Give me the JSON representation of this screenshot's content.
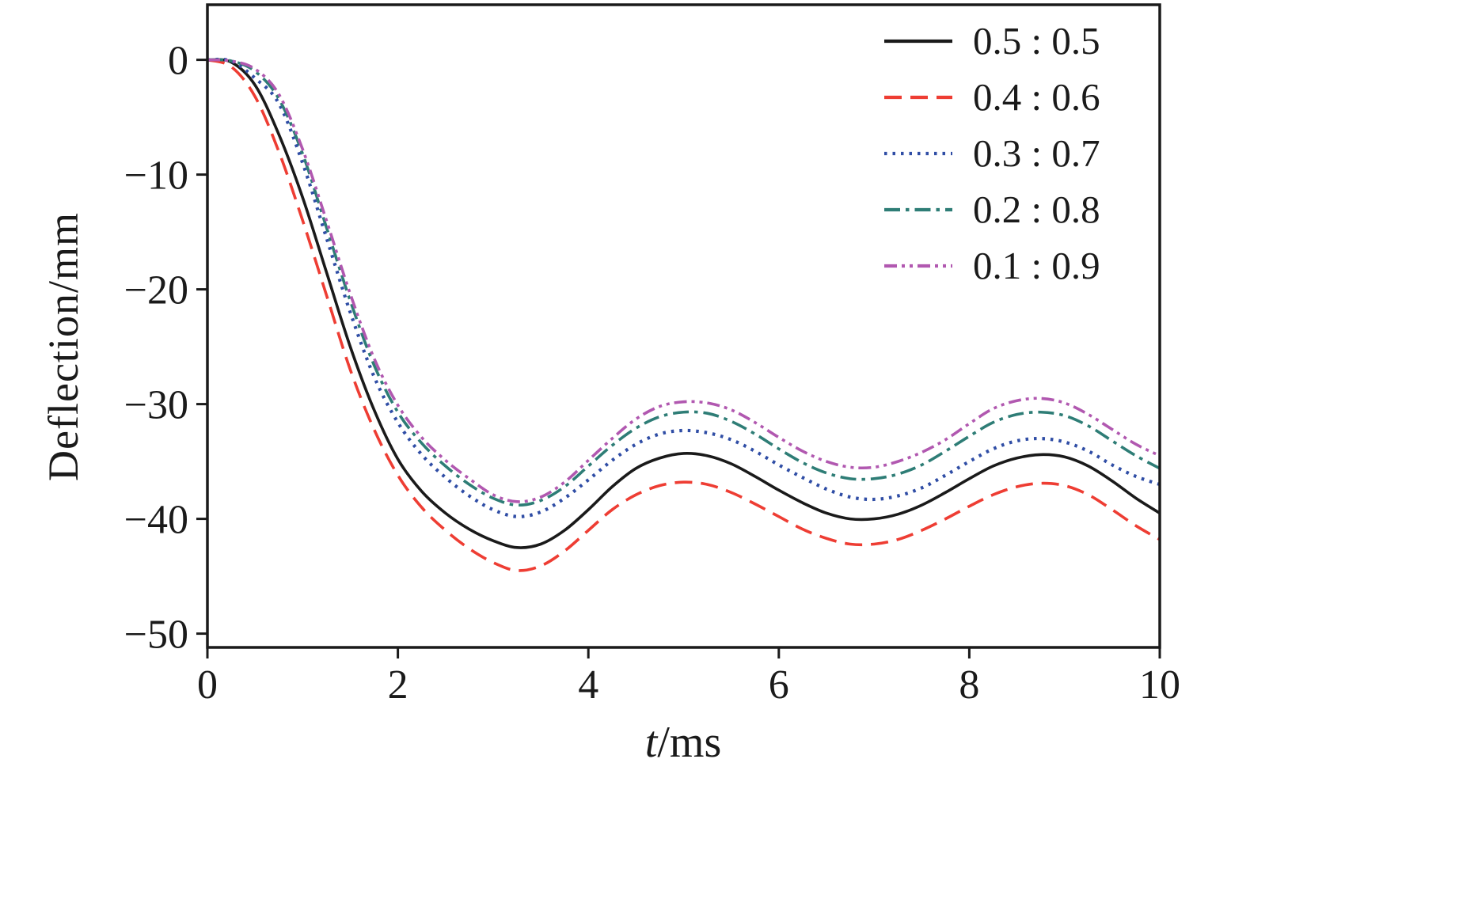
{
  "figure": {
    "background": "#ffffff",
    "ink_color": "#1a1a1a"
  },
  "chart_data": {
    "type": "line",
    "title": "",
    "xlabel": {
      "text": "t/ms",
      "variable": "t",
      "unit": "/ms"
    },
    "ylabel": "Deflection/mm",
    "xlim": [
      0,
      10
    ],
    "ylim": [
      -51.2,
      4.8
    ],
    "grid": false,
    "legend_position": "top-right-inside",
    "xticks": {
      "values": [
        0,
        2,
        4,
        6,
        8,
        10
      ],
      "labels": [
        "0",
        "2",
        "4",
        "6",
        "8",
        "10"
      ]
    },
    "yticks": {
      "values": [
        0,
        -10,
        -20,
        -30,
        -40,
        -50
      ],
      "labels": [
        "0",
        "−10",
        "−20",
        "−30",
        "−40",
        "−50"
      ]
    },
    "x": [
      0,
      0.25,
      0.5,
      0.75,
      1,
      1.25,
      1.5,
      1.75,
      2,
      2.25,
      2.5,
      2.75,
      3,
      3.25,
      3.5,
      3.75,
      4,
      4.25,
      4.5,
      4.75,
      5,
      5.25,
      5.5,
      5.75,
      6,
      6.25,
      6.5,
      6.75,
      7,
      7.25,
      7.5,
      7.75,
      8,
      8.25,
      8.5,
      8.75,
      9,
      9.25,
      9.5,
      9.75,
      10
    ],
    "series": [
      {
        "name": "0.5 : 0.5",
        "color": "#1a1a1a",
        "dash": "solid",
        "y": [
          0,
          -0.2,
          -2.2,
          -6.5,
          -12,
          -18.5,
          -25,
          -30.5,
          -34.8,
          -37.6,
          -39.5,
          -40.9,
          -41.9,
          -42.5,
          -42.2,
          -41,
          -39.2,
          -37.2,
          -35.6,
          -34.7,
          -34.3,
          -34.5,
          -35.2,
          -36.3,
          -37.5,
          -38.6,
          -39.5,
          -40,
          -40,
          -39.6,
          -38.8,
          -37.7,
          -36.5,
          -35.4,
          -34.7,
          -34.4,
          -34.6,
          -35.4,
          -36.7,
          -38.2,
          -39.5
        ]
      },
      {
        "name": "0.4 : 0.6",
        "color": "#ee3d33",
        "dash": "dashed",
        "y": [
          0,
          -0.6,
          -3.2,
          -8,
          -14,
          -20.5,
          -27,
          -32.2,
          -36.2,
          -39,
          -41,
          -42.6,
          -43.8,
          -44.5,
          -44.1,
          -42.8,
          -41,
          -39.2,
          -37.9,
          -37.1,
          -36.8,
          -37,
          -37.7,
          -38.7,
          -39.8,
          -40.9,
          -41.7,
          -42.2,
          -42.2,
          -41.8,
          -41,
          -40,
          -38.9,
          -37.9,
          -37.2,
          -36.9,
          -37.1,
          -37.9,
          -39.2,
          -40.6,
          -41.8
        ]
      },
      {
        "name": "0.3 : 0.7",
        "color": "#2f4da5",
        "dash": "dotted",
        "y": [
          0,
          -0.1,
          -1.6,
          -3.8,
          -9,
          -15.5,
          -22,
          -27.6,
          -31.6,
          -34.4,
          -36.4,
          -38,
          -39.2,
          -39.8,
          -39.4,
          -38.2,
          -36.6,
          -34.9,
          -33.5,
          -32.6,
          -32.3,
          -32.5,
          -33.1,
          -34.1,
          -35.3,
          -36.4,
          -37.4,
          -38.1,
          -38.3,
          -38,
          -37.3,
          -36.2,
          -35,
          -33.9,
          -33.2,
          -33,
          -33.3,
          -34.1,
          -35.3,
          -36.3,
          -37
        ]
      },
      {
        "name": "0.2 : 0.8",
        "color": "#2e7d76",
        "dash": "dashdot",
        "y": [
          0,
          -0.1,
          -1,
          -3.4,
          -8.2,
          -14.6,
          -21,
          -26.6,
          -30.7,
          -33.4,
          -35.4,
          -37,
          -38.2,
          -38.8,
          -38.4,
          -37.2,
          -35.4,
          -33.6,
          -32.1,
          -31.1,
          -30.7,
          -30.8,
          -31.5,
          -32.6,
          -33.9,
          -35.1,
          -36,
          -36.5,
          -36.5,
          -36.1,
          -35.3,
          -34.1,
          -32.8,
          -31.6,
          -30.9,
          -30.7,
          -31,
          -31.9,
          -33.2,
          -34.5,
          -35.6
        ]
      },
      {
        "name": "0.1 : 0.9",
        "color": "#b158b0",
        "dash": "dashdotdot",
        "y": [
          0,
          -0.1,
          -0.8,
          -3,
          -7.8,
          -14,
          -20.4,
          -26,
          -30.1,
          -32.9,
          -34.9,
          -36.5,
          -37.9,
          -38.5,
          -38.1,
          -36.8,
          -34.9,
          -33,
          -31.3,
          -30.2,
          -29.8,
          -29.9,
          -30.5,
          -31.6,
          -32.9,
          -34.1,
          -35,
          -35.5,
          -35.5,
          -35,
          -34.2,
          -33.1,
          -31.7,
          -30.4,
          -29.7,
          -29.5,
          -29.9,
          -30.9,
          -32.2,
          -33.5,
          -34.5
        ]
      }
    ]
  }
}
